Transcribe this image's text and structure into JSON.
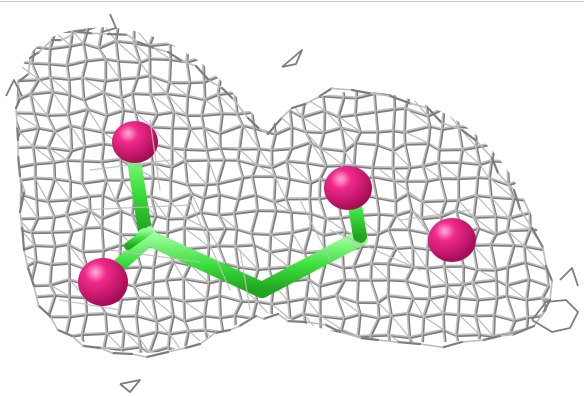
{
  "scene": {
    "background": "#ffffff",
    "mesh_color": "#bdbdbd",
    "mesh_shadow": "#7d7d7d",
    "bond_color": "#44e844",
    "atom_color": "#e8147e",
    "atom_highlight": "#ff9acb"
  }
}
